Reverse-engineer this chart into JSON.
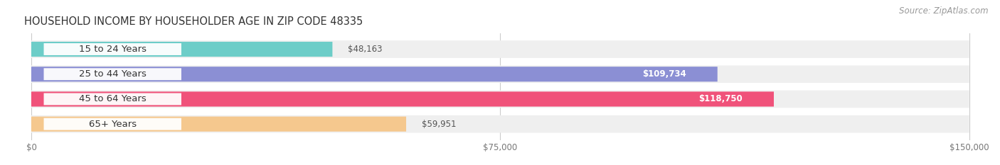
{
  "title": "HOUSEHOLD INCOME BY HOUSEHOLDER AGE IN ZIP CODE 48335",
  "source": "Source: ZipAtlas.com",
  "categories": [
    "15 to 24 Years",
    "25 to 44 Years",
    "45 to 64 Years",
    "65+ Years"
  ],
  "values": [
    48163,
    109734,
    118750,
    59951
  ],
  "bar_colors": [
    "#6dcdc8",
    "#8b8fd4",
    "#f0527a",
    "#f5c88e"
  ],
  "track_color": "#efefef",
  "label_bg_color": "#ffffff",
  "x_max": 150000,
  "x_ticks": [
    0,
    75000,
    150000
  ],
  "x_tick_labels": [
    "$0",
    "$75,000",
    "$150,000"
  ],
  "value_labels": [
    "$48,163",
    "$109,734",
    "$118,750",
    "$59,951"
  ],
  "background_color": "#ffffff",
  "title_fontsize": 10.5,
  "source_fontsize": 8.5,
  "label_fontsize": 9.5,
  "value_fontsize": 8.5
}
